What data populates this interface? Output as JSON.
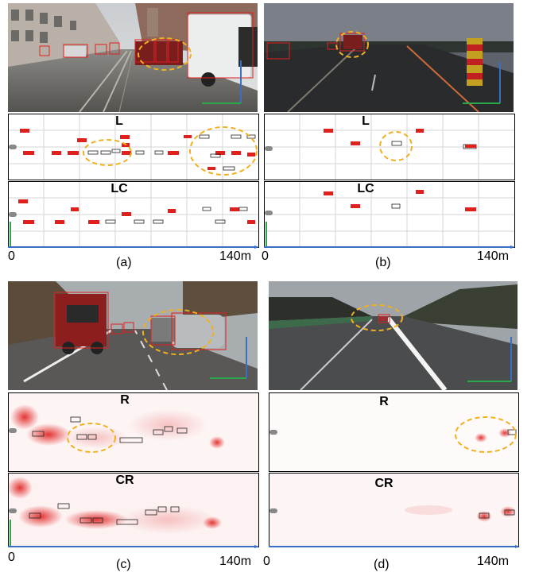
{
  "panels": [
    {
      "id": "a",
      "caption": "(a)",
      "labels": {
        "top": "L",
        "bottom": "LC"
      },
      "axis": {
        "start": "0",
        "end": "140m"
      },
      "scene": "urban street with parked cars and van"
    },
    {
      "id": "b",
      "caption": "(b)",
      "labels": {
        "top": "L",
        "bottom": "LC"
      },
      "axis": {
        "start": "0",
        "end": "140m"
      },
      "scene": "highway at dusk with warning sign"
    },
    {
      "id": "c",
      "caption": "(c)",
      "labels": {
        "top": "R",
        "bottom": "CR"
      },
      "axis": {
        "start": "0",
        "end": "140m"
      },
      "scene": "urban street with red truck and parked cars"
    },
    {
      "id": "d",
      "caption": "(d)",
      "labels": {
        "top": "R",
        "bottom": "CR"
      },
      "axis": {
        "start": "0",
        "end": "140m"
      },
      "scene": "highway through forest"
    }
  ],
  "colors": {
    "detection": "#e0201e",
    "highlight": "#f0b020",
    "axis_x": "#3a6fc4",
    "axis_y": "#2aa84a",
    "ego": "#888888"
  }
}
